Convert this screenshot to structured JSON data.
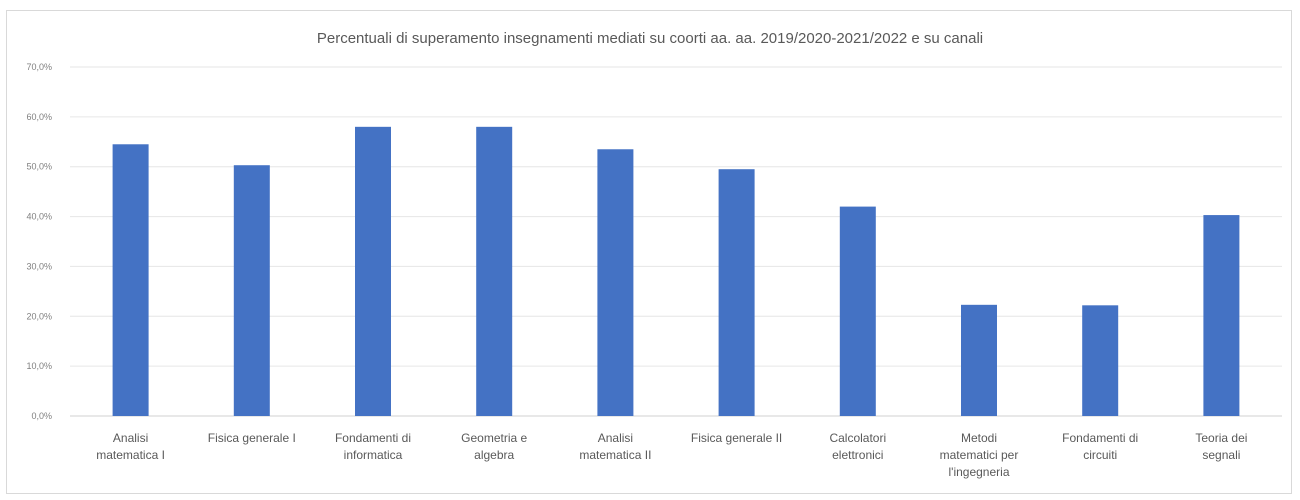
{
  "chart_data": {
    "type": "bar",
    "title": "Percentuali di superamento insegnamenti mediati su coorti aa. aa. 2019/2020-2021/2022 e su canali",
    "categories": [
      [
        "Analisi",
        "matematica I"
      ],
      [
        "Fisica generale I"
      ],
      [
        "Fondamenti di",
        "informatica"
      ],
      [
        "Geometria e",
        "algebra"
      ],
      [
        "Analisi",
        "matematica II"
      ],
      [
        "Fisica generale II"
      ],
      [
        "Calcolatori",
        "elettronici"
      ],
      [
        "Metodi",
        "matematici per",
        "l'ingegneria"
      ],
      [
        "Fondamenti di",
        "circuiti"
      ],
      [
        "Teoria dei",
        "segnali"
      ]
    ],
    "values": [
      54.5,
      50.3,
      58.0,
      58.0,
      53.5,
      49.5,
      42.0,
      22.3,
      22.2,
      40.3
    ],
    "ylim": [
      0,
      70
    ],
    "yticks": [
      "0,0%",
      "10,0%",
      "20,0%",
      "30,0%",
      "40,0%",
      "50,0%",
      "60,0%",
      "70,0%"
    ],
    "grid": true,
    "bar_color": "#4472c4",
    "grid_color": "#e6e6e6"
  }
}
